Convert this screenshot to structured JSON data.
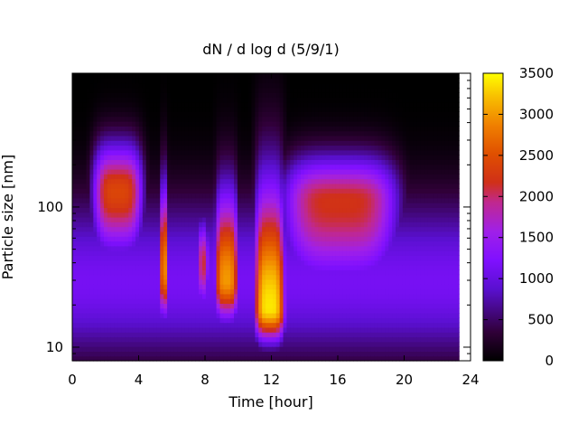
{
  "chart_data": {
    "type": "heatmap",
    "title": "dN / d log d (5/9/1)",
    "xlabel": "Time [hour]",
    "ylabel": "Particle size [nm]",
    "x_range": [
      0,
      24
    ],
    "x_ticks": [
      0,
      4,
      8,
      12,
      16,
      20,
      24
    ],
    "y_range": [
      8,
      900
    ],
    "y_scale": "log",
    "y_ticks": [
      10,
      100
    ],
    "data_x_extent": [
      0,
      23.3
    ],
    "colorbar": {
      "range": [
        0,
        3500
      ],
      "ticks": [
        0,
        500,
        1000,
        1500,
        2000,
        2500,
        3000,
        3500
      ],
      "colormap": "gnuplot (black-purple-red-orange-yellow)"
    },
    "features": [
      {
        "hours": [
          1.3,
          4.2
        ],
        "size_nm": [
          30,
          400
        ],
        "peak_size_nm": 130,
        "peak": 2400
      },
      {
        "hours": [
          5.3,
          5.8
        ],
        "size_nm": [
          12,
          250
        ],
        "peak_size_nm": 35,
        "peak": 2900
      },
      {
        "hours": [
          7.6,
          8.2
        ],
        "size_nm": [
          14,
          110
        ],
        "peak_size_nm": 40,
        "peak": 2100
      },
      {
        "hours": [
          8.6,
          10.0
        ],
        "size_nm": [
          12,
          240
        ],
        "peak_size_nm": 30,
        "peak": 3000
      },
      {
        "hours": [
          11.0,
          12.8
        ],
        "size_nm": [
          9,
          340
        ],
        "peak_size_nm": 19,
        "peak": 3400
      },
      {
        "hours": [
          12.8,
          19.5
        ],
        "size_nm": [
          15,
          320
        ],
        "peak_size_nm": 110,
        "peak": 2200
      }
    ]
  }
}
